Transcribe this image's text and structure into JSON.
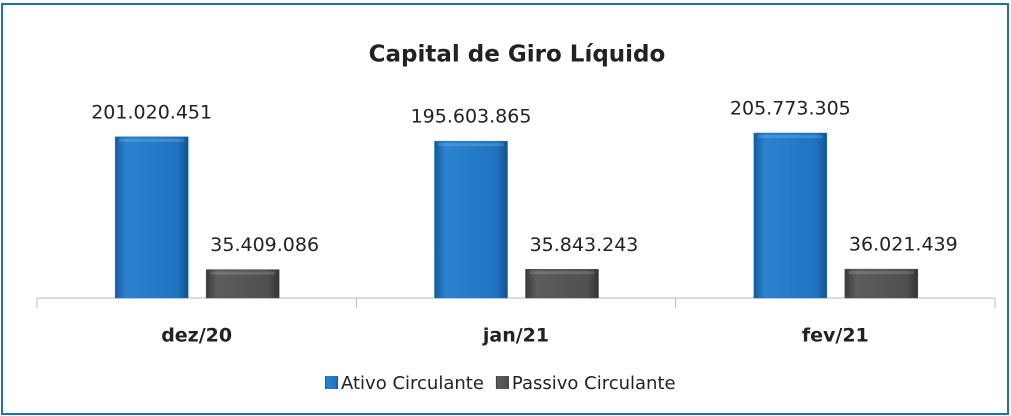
{
  "chart_data": {
    "type": "bar",
    "title": "Capital de Giro Líquido",
    "categories": [
      "dez/20",
      "jan/21",
      "fev/21"
    ],
    "series": [
      {
        "name": "Ativo Circulante",
        "color": "#1f74c0",
        "values": [
          201020451,
          195603865,
          205773305
        ],
        "value_labels": [
          "201.020.451",
          "195.603.865",
          "205.773.305"
        ]
      },
      {
        "name": "Passivo Circulante",
        "color": "#505050",
        "values": [
          35409086,
          35843243,
          36021439
        ],
        "value_labels": [
          "35.409.086",
          "35.843.243",
          "36.021.439"
        ]
      }
    ],
    "legend": "bottom"
  }
}
